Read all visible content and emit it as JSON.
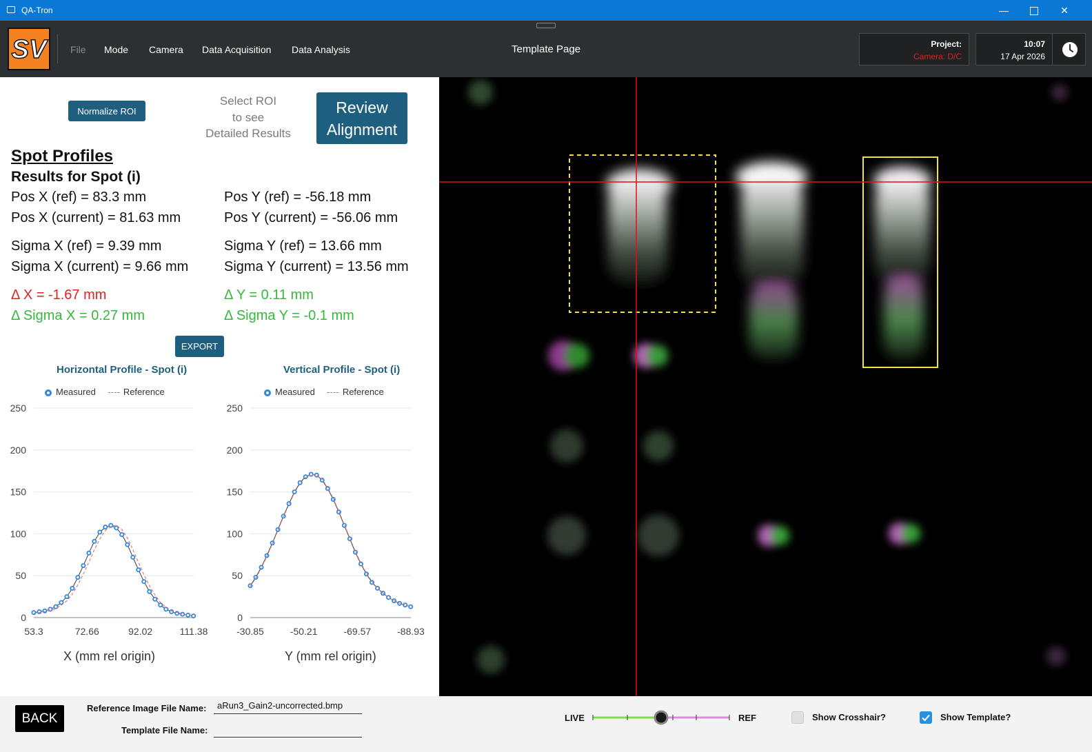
{
  "window": {
    "title": "QA-Tron",
    "minimize_icon": "minimize-icon",
    "maximize_icon": "maximize-icon",
    "close_icon": "close-icon"
  },
  "menu": {
    "logo_text": "SV",
    "items": [
      {
        "label": "File",
        "enabled": false
      },
      {
        "label": "Mode",
        "enabled": true
      },
      {
        "label": "Camera",
        "enabled": true
      },
      {
        "label": "Data Acquisition",
        "enabled": true
      },
      {
        "label": "Data Analysis",
        "enabled": true
      }
    ],
    "page_title": "Template Page"
  },
  "status": {
    "project_label": "Project:",
    "camera_status": "Camera: D/C",
    "time": "10:07",
    "date": "17 Apr 2026",
    "clock_icon": "clock-icon"
  },
  "controls": {
    "normalize_label": "Normalize ROI",
    "hint_lines": [
      "Select ROI",
      "to see",
      "Detailed Results"
    ],
    "review_lines": [
      "Review",
      "Alignment"
    ],
    "export_label": "EXPORT"
  },
  "results": {
    "heading": "Spot Profiles",
    "subheading": "Results for Spot (i)",
    "pos_x_ref": "Pos X (ref) = 83.3 mm",
    "pos_x_cur": "Pos X (current) = 81.63 mm",
    "pos_y_ref": "Pos Y (ref) = -56.18 mm",
    "pos_y_cur": "Pos Y (current) = -56.06 mm",
    "sig_x_ref": "Sigma X (ref) = 9.39 mm",
    "sig_x_cur": "Sigma X (current) = 9.66 mm",
    "sig_y_ref": "Sigma Y (ref) = 13.66 mm",
    "sig_y_cur": "Sigma Y (current) = 13.56 mm",
    "delta_x": "Δ X = -1.67 mm",
    "delta_y": "Δ Y = 0.11 mm",
    "delta_sig_x": "Δ Sigma X = 0.27 mm",
    "delta_sig_y": "Δ Sigma Y = -0.1 mm"
  },
  "chart_data": [
    {
      "type": "line",
      "title": "Horizontal Profile - Spot (i)",
      "xlabel": "X (mm rel origin)",
      "ylabel": "",
      "xticks": [
        "53.3",
        "72.66",
        "92.02",
        "111.38"
      ],
      "xlim": [
        53.3,
        111.38
      ],
      "ylim": [
        0,
        250
      ],
      "yticks": [
        0,
        50,
        100,
        150,
        200,
        250
      ],
      "legend": "top",
      "series": [
        {
          "name": "Measured",
          "style": "markers+line",
          "color": "#2e86de",
          "x": [
            53.3,
            55.3,
            57.3,
            59.3,
            61.3,
            63.3,
            65.3,
            67.3,
            69.3,
            71.3,
            73.3,
            75.3,
            77.3,
            79.3,
            81.3,
            83.3,
            85.3,
            87.3,
            89.3,
            91.3,
            93.3,
            95.3,
            97.3,
            99.3,
            101.3,
            103.3,
            105.3,
            107.3,
            109.3,
            111.3
          ],
          "y": [
            6,
            7,
            8,
            10,
            13,
            18,
            25,
            35,
            48,
            62,
            77,
            91,
            102,
            108,
            110,
            107,
            99,
            87,
            72,
            57,
            43,
            31,
            22,
            15,
            10,
            7,
            5,
            4,
            3,
            2
          ]
        },
        {
          "name": "Reference",
          "style": "dashed",
          "color": "#e06060",
          "x": [
            53.3,
            55.3,
            57.3,
            59.3,
            61.3,
            63.3,
            65.3,
            67.3,
            69.3,
            71.3,
            73.3,
            75.3,
            77.3,
            79.3,
            81.3,
            83.3,
            85.3,
            87.3,
            89.3,
            91.3,
            93.3,
            95.3,
            97.3,
            99.3,
            101.3,
            103.3,
            105.3,
            107.3,
            109.3,
            111.3
          ],
          "y": [
            5,
            6,
            7,
            8,
            11,
            15,
            20,
            28,
            39,
            52,
            66,
            81,
            94,
            104,
            109,
            110,
            105,
            95,
            81,
            66,
            51,
            38,
            27,
            18,
            12,
            8,
            6,
            4,
            3,
            2
          ]
        }
      ]
    },
    {
      "type": "line",
      "title": "Vertical Profile - Spot (i)",
      "xlabel": "Y (mm rel origin)",
      "ylabel": "",
      "xticks": [
        "-30.85",
        "-50.21",
        "-69.57",
        "-88.93"
      ],
      "xlim": [
        -30.85,
        -88.93
      ],
      "ylim": [
        0,
        250
      ],
      "yticks": [
        0,
        50,
        100,
        150,
        200,
        250
      ],
      "legend": "top",
      "series": [
        {
          "name": "Measured",
          "style": "markers+line",
          "color": "#2e86de",
          "x": [
            -30.85,
            -32.85,
            -34.85,
            -36.85,
            -38.85,
            -40.85,
            -42.85,
            -44.85,
            -46.85,
            -48.85,
            -50.85,
            -52.85,
            -54.85,
            -56.85,
            -58.85,
            -60.85,
            -62.85,
            -64.85,
            -66.85,
            -68.85,
            -70.85,
            -72.85,
            -74.85,
            -76.85,
            -78.85,
            -80.85,
            -82.85,
            -84.85,
            -86.85,
            -88.85
          ],
          "y": [
            38,
            48,
            60,
            74,
            89,
            105,
            121,
            136,
            150,
            161,
            168,
            171,
            170,
            164,
            154,
            141,
            126,
            110,
            94,
            78,
            64,
            52,
            42,
            35,
            29,
            24,
            20,
            17,
            15,
            13
          ]
        },
        {
          "name": "Reference",
          "style": "dashed",
          "color": "#e06060",
          "x": [
            -30.85,
            -32.85,
            -34.85,
            -36.85,
            -38.85,
            -40.85,
            -42.85,
            -44.85,
            -46.85,
            -48.85,
            -50.85,
            -52.85,
            -54.85,
            -56.85,
            -58.85,
            -60.85,
            -62.85,
            -64.85,
            -66.85,
            -68.85,
            -70.85,
            -72.85,
            -74.85,
            -76.85,
            -78.85,
            -80.85,
            -82.85,
            -84.85,
            -86.85,
            -88.85
          ],
          "y": [
            37,
            47,
            59,
            73,
            88,
            104,
            120,
            135,
            149,
            160,
            167,
            171,
            170,
            165,
            155,
            142,
            127,
            111,
            95,
            79,
            65,
            53,
            43,
            35,
            29,
            24,
            20,
            17,
            15,
            13
          ]
        }
      ]
    }
  ],
  "bottom": {
    "back_label": "BACK",
    "ref_label": "Reference Image File Name:",
    "ref_value": "aRun3_Gain2-uncorrected.bmp",
    "template_label": "Template File Name:",
    "template_value": "",
    "live_label": "LIVE",
    "ref_short_label": "REF",
    "slider_value": 0.5,
    "crosshair_label": "Show Crosshair?",
    "crosshair_checked": false,
    "template_chk_label": "Show Template?",
    "template_checked": true,
    "colors": {
      "accent": "#1e5f80",
      "live": "#7ee040",
      "ref": "#e08ae0",
      "check": "#2b8fe0"
    }
  }
}
